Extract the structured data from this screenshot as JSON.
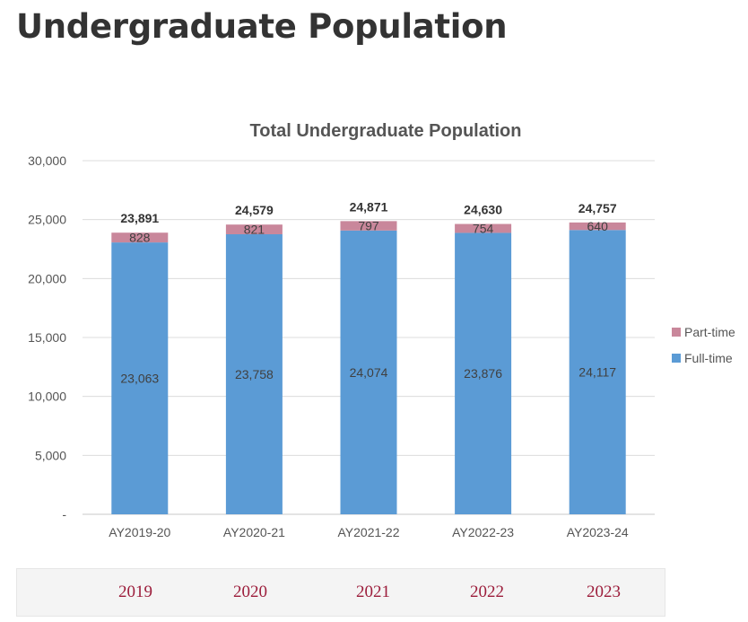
{
  "page": {
    "title": "Undergraduate Population"
  },
  "year_tabs": {
    "items": [
      "2019",
      "2020",
      "2021",
      "2022",
      "2023"
    ],
    "color": "#9c1d3b"
  },
  "chart_data": {
    "type": "bar",
    "stacked": true,
    "title": "Total Undergraduate Population",
    "xlabel": "",
    "ylabel": "",
    "categories": [
      "AY2019-20",
      "AY2020-21",
      "AY2021-22",
      "AY2022-23",
      "AY2023-24"
    ],
    "series": [
      {
        "name": "Full-time",
        "values": [
          23063,
          23758,
          24074,
          23876,
          24117
        ],
        "color": "#5b9bd5"
      },
      {
        "name": "Part-time",
        "values": [
          828,
          821,
          797,
          754,
          640
        ],
        "color": "#c9879b"
      }
    ],
    "totals": [
      23891,
      24579,
      24871,
      24630,
      24757
    ],
    "total_labels": [
      "23,891",
      "24,579",
      "24,871",
      "24,630",
      "24,757"
    ],
    "fulltime_labels": [
      "23,063",
      "23,758",
      "24,074",
      "23,876",
      "24,117"
    ],
    "parttime_labels": [
      "828",
      "821",
      "797",
      "754",
      "640"
    ],
    "ylim": [
      0,
      30000
    ],
    "yticks": [
      0,
      5000,
      10000,
      15000,
      20000,
      25000,
      30000
    ],
    "ytick_labels": [
      "-",
      "5,000",
      "10,000",
      "15,000",
      "20,000",
      "25,000",
      "30,000"
    ],
    "grid": true,
    "legend": {
      "position": "right",
      "entries": [
        "Part-time",
        "Full-time"
      ]
    }
  }
}
